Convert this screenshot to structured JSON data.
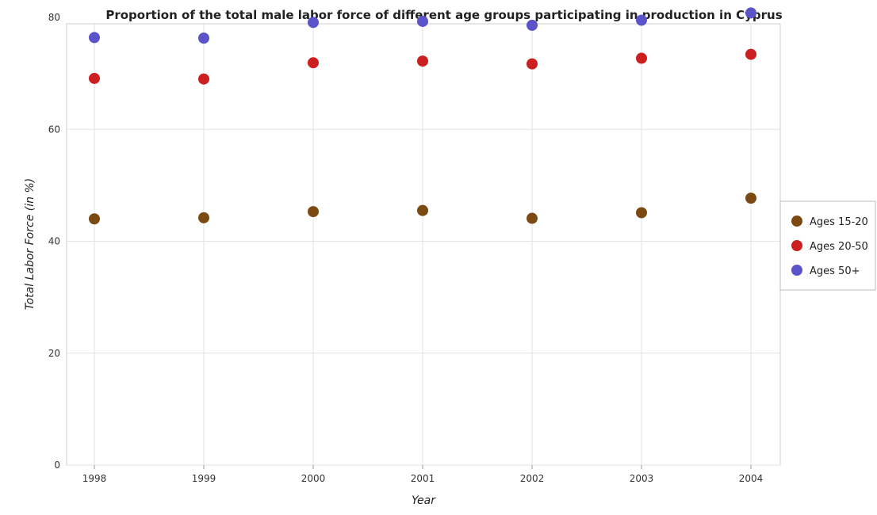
{
  "chart_data": {
    "type": "scatter",
    "title": "Proportion of the total male labor force of different age groups participating in production in Cyprus",
    "xlabel": "Year",
    "ylabel": "Total Labor Force (in %)",
    "categories": [
      "1998",
      "1999",
      "2000",
      "2001",
      "2002",
      "2003",
      "2004"
    ],
    "ylim": [
      0,
      85
    ],
    "yticks": [
      0,
      20,
      40,
      60,
      80
    ],
    "grid": true,
    "legend_position": "right",
    "series": [
      {
        "name": "Ages 15-20",
        "color": "#7b4a12",
        "values": [
          44.0,
          44.2,
          45.3,
          45.5,
          44.1,
          45.1,
          47.7
        ]
      },
      {
        "name": "Ages 20-50",
        "color": "#cc1f1f",
        "values": [
          69.1,
          69.0,
          71.9,
          72.2,
          71.7,
          72.7,
          73.4
        ]
      },
      {
        "name": "Ages 50+",
        "color": "#5a53c9",
        "values": [
          76.4,
          76.3,
          79.1,
          79.3,
          78.6,
          79.5,
          80.8
        ]
      }
    ]
  }
}
